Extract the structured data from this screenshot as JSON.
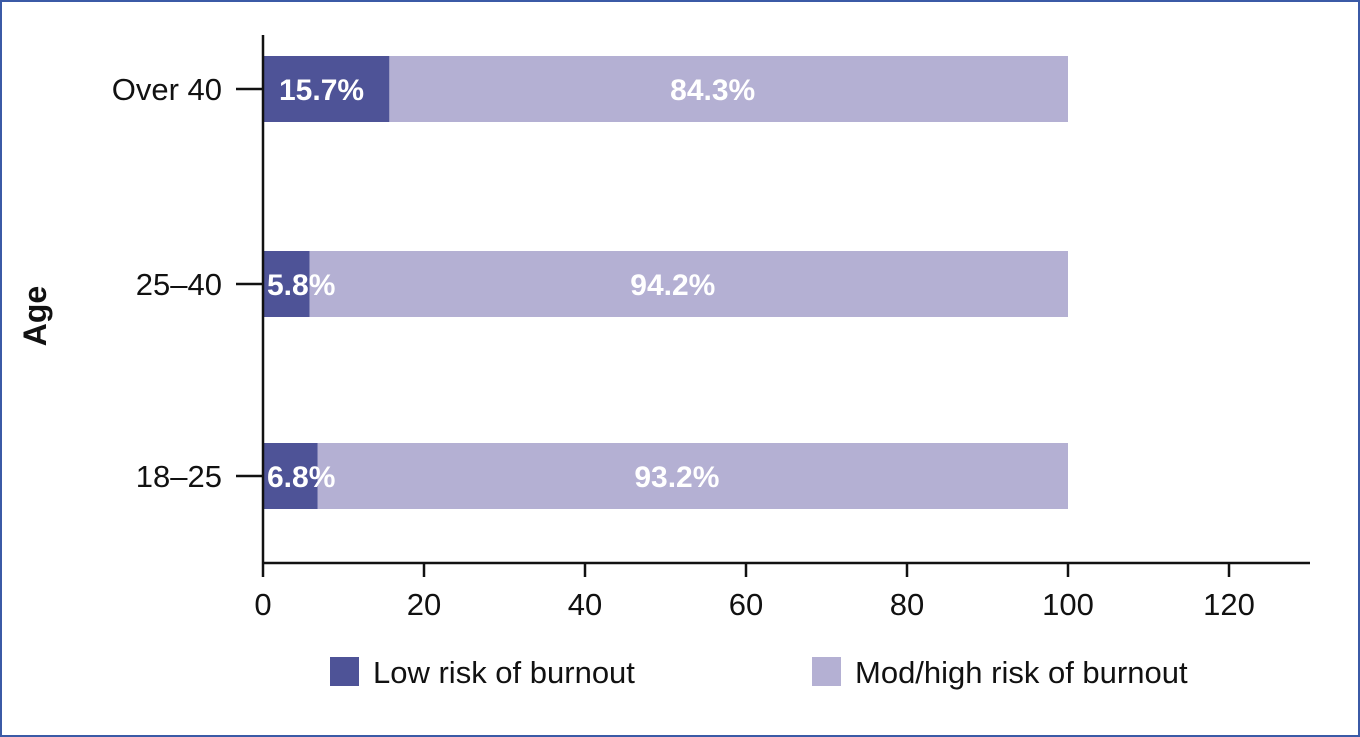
{
  "chart_data": {
    "type": "bar",
    "orientation": "horizontal",
    "stacked": true,
    "categories": [
      "Over 40",
      "25–40",
      "18–25"
    ],
    "series": [
      {
        "name": "Low risk of burnout",
        "color": "#4e5397",
        "values": [
          15.7,
          5.8,
          6.8
        ],
        "labels": [
          "15.7%",
          "5.8%",
          "6.8%"
        ]
      },
      {
        "name": "Mod/high risk of burnout",
        "color": "#b4b0d3",
        "values": [
          84.3,
          94.2,
          93.2
        ],
        "labels": [
          "84.3%",
          "94.2%",
          "93.2%"
        ]
      }
    ],
    "xlabel": "",
    "ylabel": "Age",
    "xlim": [
      0,
      130
    ],
    "xticks": [
      0,
      20,
      40,
      60,
      80,
      100,
      120
    ],
    "legend_position": "bottom",
    "grid": false
  }
}
